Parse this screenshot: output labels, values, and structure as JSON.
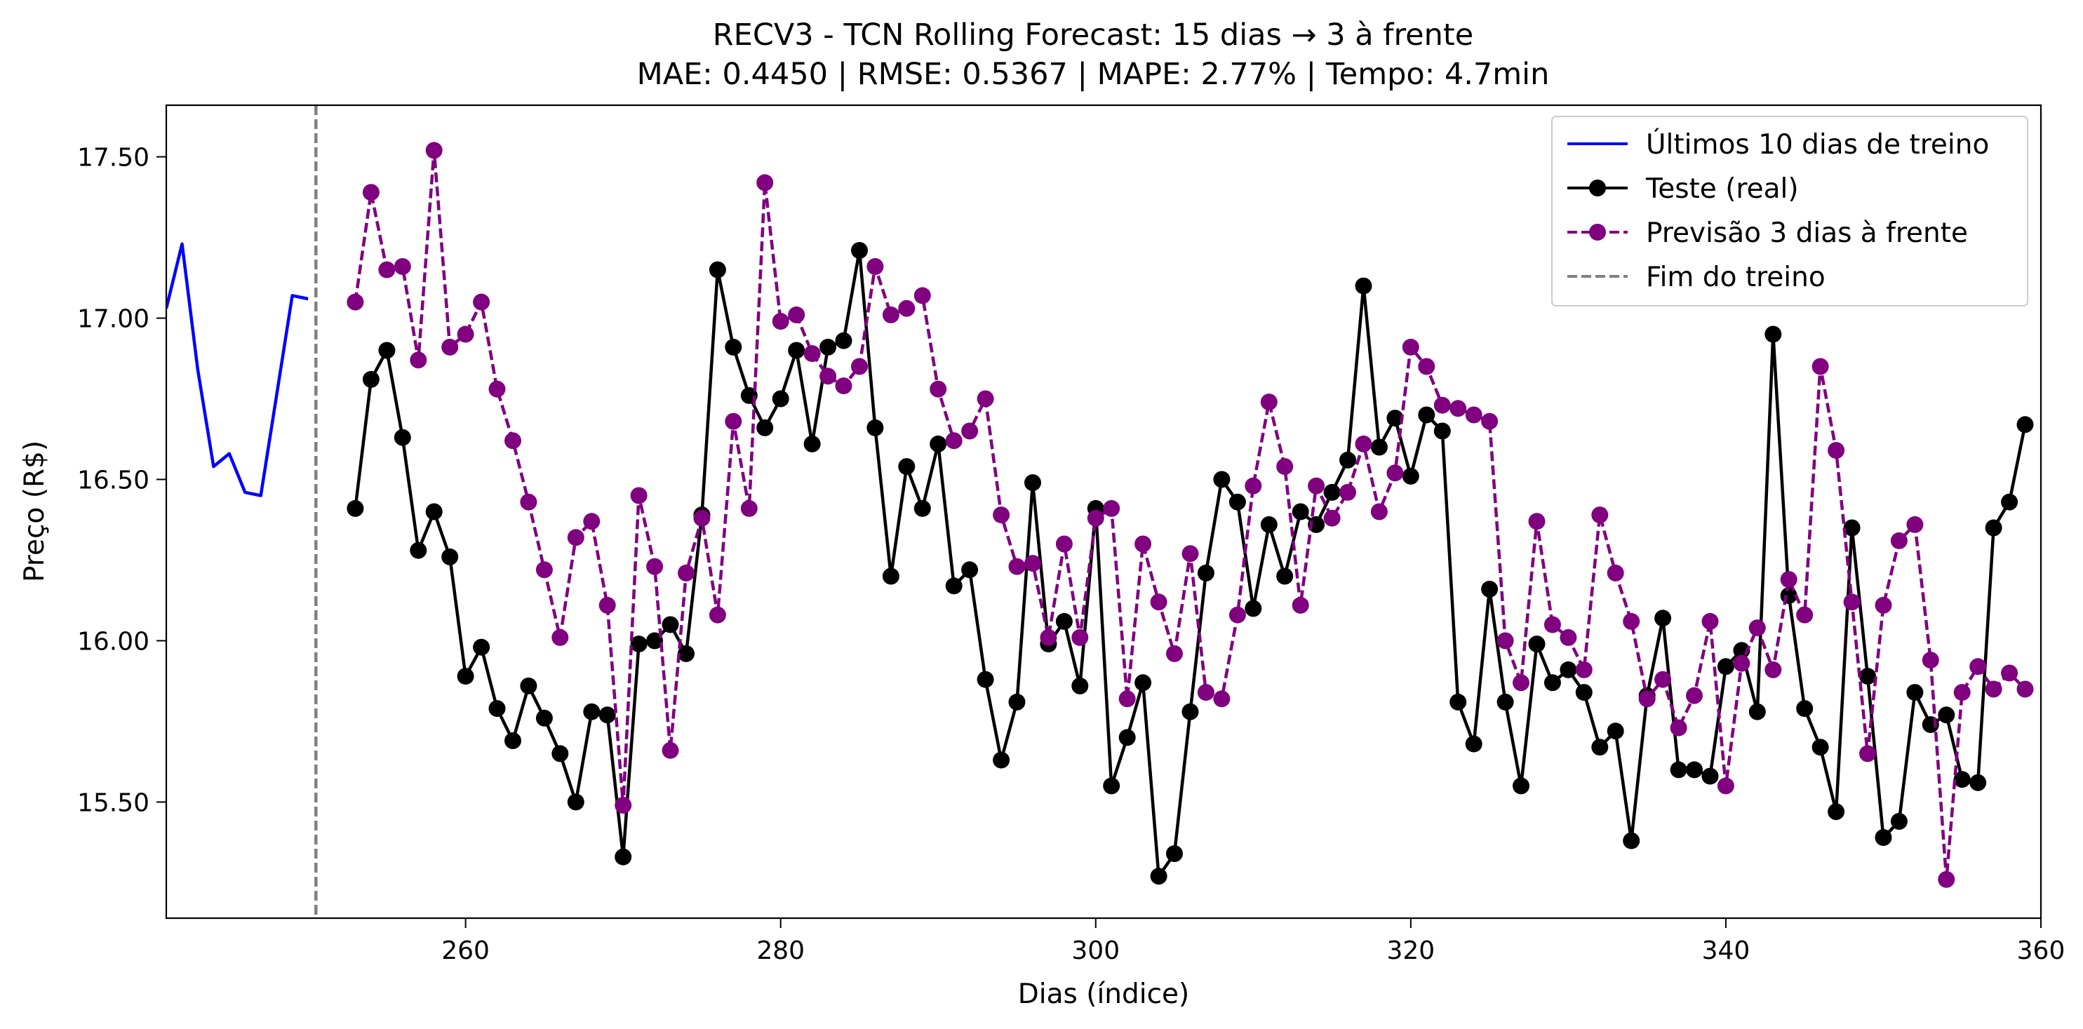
{
  "chart_data": {
    "type": "line",
    "title": "RECV3 - TCN Rolling Forecast: 15 dias → 3 à frente",
    "subtitle": "MAE: 0.4450 | RMSE: 0.5367 | MAPE: 2.77% | Tempo: 4.7min",
    "xlabel": "Dias (índice)",
    "ylabel": "Preço (R$)",
    "xlim": [
      241,
      360
    ],
    "ylim": [
      15.14,
      17.66
    ],
    "xticks": [
      260,
      280,
      300,
      320,
      340,
      360
    ],
    "yticks": [
      15.5,
      16.0,
      16.5,
      17.0,
      17.5
    ],
    "ytick_labels": [
      "15.50",
      "16.00",
      "16.50",
      "17.00",
      "17.50"
    ],
    "grid": false,
    "legend_position": "top-right",
    "train_end": 250.5,
    "series": [
      {
        "name": "Últimos 10 dias de treino",
        "color": "#0000ff",
        "style": "solid",
        "markers": false,
        "x": [
          241,
          242,
          243,
          244,
          245,
          246,
          247,
          248,
          249,
          250
        ],
        "y": [
          17.03,
          17.23,
          16.84,
          16.54,
          16.58,
          16.46,
          16.45,
          16.76,
          17.07,
          17.06
        ]
      },
      {
        "name": "Teste (real)",
        "color": "#000000",
        "style": "solid",
        "markers": true,
        "x": [
          253,
          254,
          255,
          256,
          257,
          258,
          259,
          260,
          261,
          262,
          263,
          264,
          265,
          266,
          267,
          268,
          269,
          270,
          271,
          272,
          273,
          274,
          275,
          276,
          277,
          278,
          279,
          280,
          281,
          282,
          283,
          284,
          285,
          286,
          287,
          288,
          289,
          290,
          291,
          292,
          293,
          294,
          295,
          296,
          297,
          298,
          299,
          300,
          301,
          302,
          303,
          304,
          305,
          306,
          307,
          308,
          309,
          310,
          311,
          312,
          313,
          314,
          315,
          316,
          317,
          318,
          319,
          320,
          321,
          322,
          323,
          324,
          325,
          326,
          327,
          328,
          329,
          330,
          331,
          332,
          333,
          334,
          335,
          336,
          337,
          338,
          339,
          340,
          341,
          342,
          343,
          344,
          345,
          346,
          347,
          348,
          349,
          350,
          351,
          352,
          353,
          354,
          355,
          356,
          357,
          358,
          359
        ],
        "y": [
          16.41,
          16.81,
          16.9,
          16.63,
          16.28,
          16.4,
          16.26,
          15.89,
          15.98,
          15.79,
          15.69,
          15.86,
          15.76,
          15.65,
          15.5,
          15.78,
          15.77,
          15.33,
          15.99,
          16.0,
          16.05,
          15.96,
          16.39,
          17.15,
          16.91,
          16.76,
          16.66,
          16.75,
          16.9,
          16.61,
          16.91,
          16.93,
          17.21,
          16.66,
          16.2,
          16.54,
          16.41,
          16.61,
          16.17,
          16.22,
          15.88,
          15.63,
          15.81,
          16.49,
          15.99,
          16.06,
          15.86,
          16.41,
          15.55,
          15.7,
          15.87,
          15.27,
          15.34,
          15.78,
          16.21,
          16.5,
          16.43,
          16.1,
          16.36,
          16.2,
          16.4,
          16.36,
          16.46,
          16.56,
          17.1,
          16.6,
          16.69,
          16.51,
          16.7,
          16.65,
          15.81,
          15.68,
          16.16,
          15.81,
          15.55,
          15.99,
          15.87,
          15.91,
          15.84,
          15.67,
          15.72,
          15.38,
          15.83,
          16.07,
          15.6,
          15.6,
          15.58,
          15.92,
          15.97,
          15.78,
          16.95,
          16.14,
          15.79,
          15.67,
          15.47,
          16.35,
          15.89,
          15.39,
          15.44,
          15.84,
          15.74,
          15.77,
          15.57,
          15.56,
          16.35,
          16.43,
          16.67
        ]
      },
      {
        "name": "Previsão 3 dias à frente",
        "color": "#800080",
        "style": "dashed",
        "markers": true,
        "x": [
          253,
          254,
          255,
          256,
          257,
          258,
          259,
          260,
          261,
          262,
          263,
          264,
          265,
          266,
          267,
          268,
          269,
          270,
          271,
          272,
          273,
          274,
          275,
          276,
          277,
          278,
          279,
          280,
          281,
          282,
          283,
          284,
          285,
          286,
          287,
          288,
          289,
          290,
          291,
          292,
          293,
          294,
          295,
          296,
          297,
          298,
          299,
          300,
          301,
          302,
          303,
          304,
          305,
          306,
          307,
          308,
          309,
          310,
          311,
          312,
          313,
          314,
          315,
          316,
          317,
          318,
          319,
          320,
          321,
          322,
          323,
          324,
          325,
          326,
          327,
          328,
          329,
          330,
          331,
          332,
          333,
          334,
          335,
          336,
          337,
          338,
          339,
          340,
          341,
          342,
          343,
          344,
          345,
          346,
          347,
          348,
          349,
          350,
          351,
          352,
          353,
          354,
          355,
          356,
          357,
          358,
          359
        ],
        "y": [
          17.05,
          17.39,
          17.15,
          17.16,
          16.87,
          17.52,
          16.91,
          16.95,
          17.05,
          16.78,
          16.62,
          16.43,
          16.22,
          16.01,
          16.32,
          16.37,
          16.11,
          15.49,
          16.45,
          16.23,
          15.66,
          16.21,
          16.38,
          16.08,
          16.68,
          16.41,
          17.42,
          16.99,
          17.01,
          16.89,
          16.82,
          16.79,
          16.85,
          17.16,
          17.01,
          17.03,
          17.07,
          16.78,
          16.62,
          16.65,
          16.75,
          16.39,
          16.23,
          16.24,
          16.01,
          16.3,
          16.01,
          16.38,
          16.41,
          15.82,
          16.3,
          16.12,
          15.96,
          16.27,
          15.84,
          15.82,
          16.08,
          16.48,
          16.74,
          16.54,
          16.11,
          16.48,
          16.38,
          16.46,
          16.61,
          16.4,
          16.52,
          16.91,
          16.85,
          16.73,
          16.72,
          16.7,
          16.68,
          16.0,
          15.87,
          16.37,
          16.05,
          16.01,
          15.91,
          16.39,
          16.21,
          16.06,
          15.82,
          15.88,
          15.73,
          15.83,
          16.06,
          15.55,
          15.93,
          16.04,
          15.91,
          16.19,
          16.08,
          16.85,
          16.59,
          16.12,
          15.65,
          16.11,
          16.31,
          16.36,
          15.94,
          15.26,
          15.84,
          15.92,
          15.85,
          15.9,
          15.85
        ]
      },
      {
        "name": "Fim do treino",
        "color": "#808080",
        "style": "dashed",
        "markers": false
      }
    ]
  }
}
